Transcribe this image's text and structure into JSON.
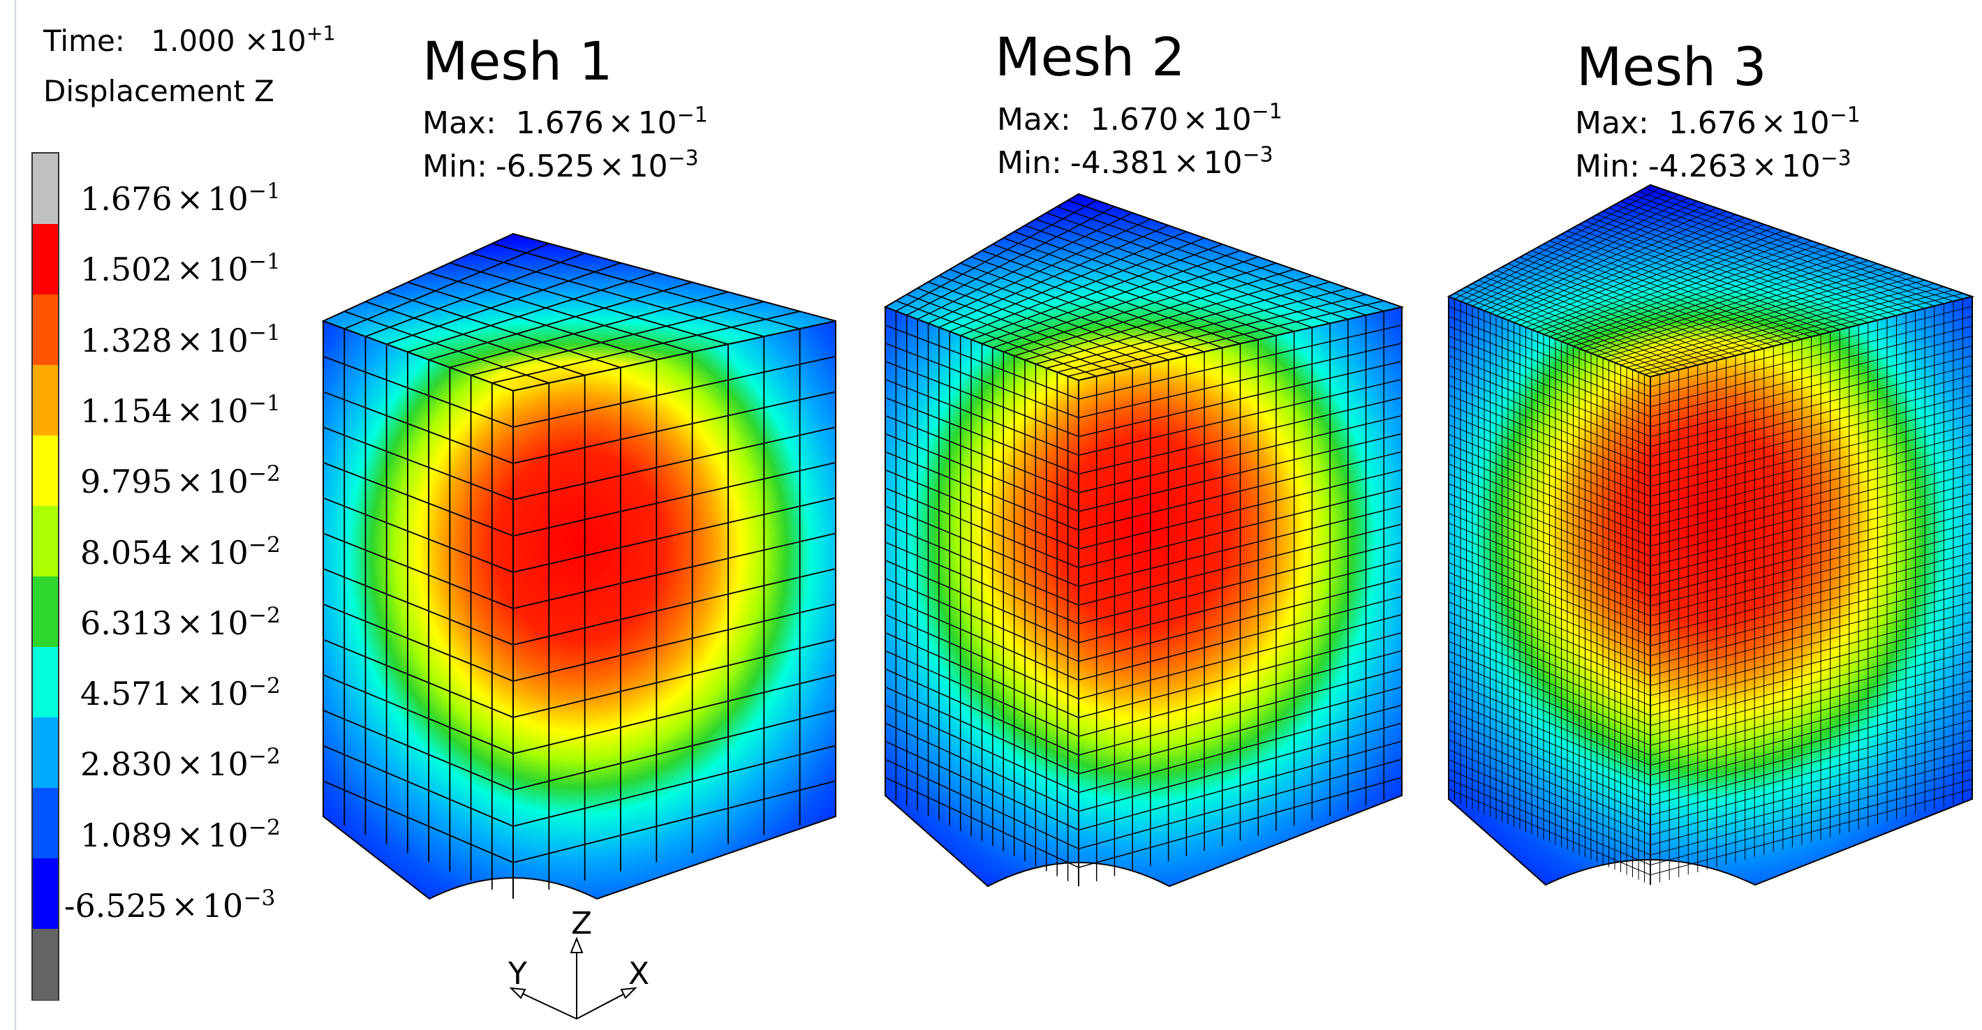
{
  "header": {
    "time_label": "Time:",
    "time_mantissa": "1.000",
    "time_exp": "+1",
    "variable": "Displacement Z"
  },
  "legend": {
    "entries": [
      {
        "mantissa": "1.676",
        "exp": "−1"
      },
      {
        "mantissa": "1.502",
        "exp": "−1"
      },
      {
        "mantissa": "1.328",
        "exp": "−1"
      },
      {
        "mantissa": "1.154",
        "exp": "−1"
      },
      {
        "mantissa": "9.795",
        "exp": "−2"
      },
      {
        "mantissa": "8.054",
        "exp": "−2"
      },
      {
        "mantissa": "6.313",
        "exp": "−2"
      },
      {
        "mantissa": "4.571",
        "exp": "−2"
      },
      {
        "mantissa": "2.830",
        "exp": "−2"
      },
      {
        "mantissa": "1.089",
        "exp": "−2"
      },
      {
        "mantissa": "-6.525",
        "exp": "−3"
      }
    ],
    "colors": [
      "#c0c0c0",
      "#ff0000",
      "#ff5500",
      "#ffaa00",
      "#ffff00",
      "#aaff00",
      "#2ed62e",
      "#00ffdd",
      "#00aaff",
      "#0055ff",
      "#0000ff",
      "#646464"
    ]
  },
  "meshes": [
    {
      "title": "Mesh 1",
      "max_label": "Max:",
      "max_mantissa": "1.676",
      "max_exp": "−1",
      "min_label": "Min:",
      "min_mantissa": "-6.525",
      "min_exp": "−3",
      "divisions": 9
    },
    {
      "title": "Mesh 2",
      "max_label": "Max:",
      "max_mantissa": "1.670",
      "max_exp": "−1",
      "min_label": "Min:",
      "min_mantissa": "-4.381",
      "min_exp": "−3",
      "divisions": 18
    },
    {
      "title": "Mesh 3",
      "max_label": "Max:",
      "max_mantissa": "1.676",
      "max_exp": "−1",
      "min_label": "Min:",
      "min_mantissa": "-4.263",
      "min_exp": "−3",
      "divisions": 34
    }
  ],
  "triad": {
    "z": "Z",
    "y": "Y",
    "x": "X"
  },
  "times_symbol": "×",
  "base": "10"
}
